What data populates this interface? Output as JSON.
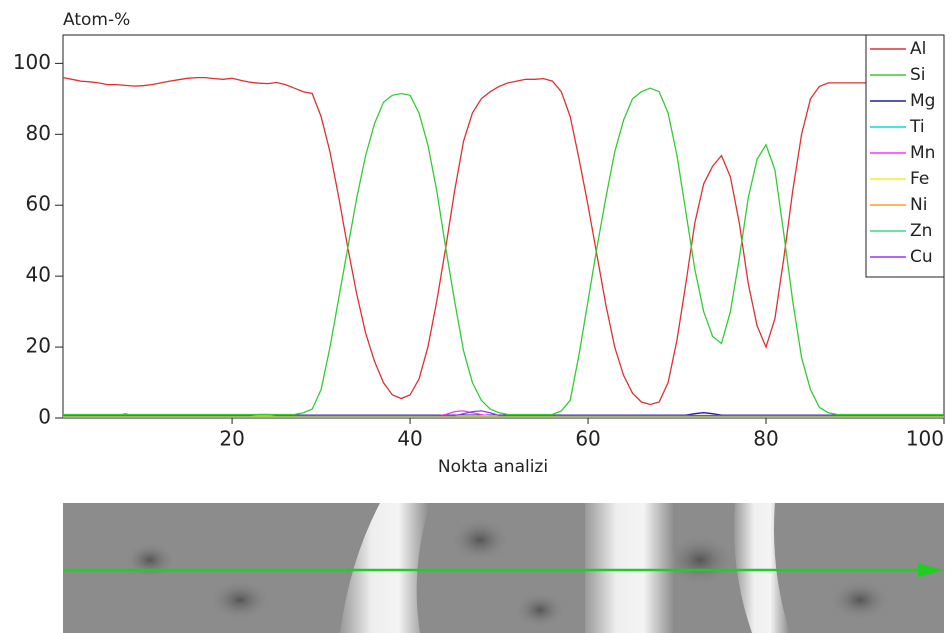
{
  "chart_data": {
    "type": "line",
    "y_label": "Atom-%",
    "x_label": "Nokta analizi",
    "x": [
      1,
      2,
      3,
      4,
      5,
      6,
      7,
      8,
      9,
      10,
      11,
      12,
      13,
      14,
      15,
      16,
      17,
      18,
      19,
      20,
      21,
      22,
      23,
      24,
      25,
      26,
      27,
      28,
      29,
      30,
      31,
      32,
      33,
      34,
      35,
      36,
      37,
      38,
      39,
      40,
      41,
      42,
      43,
      44,
      45,
      46,
      47,
      48,
      49,
      50,
      51,
      52,
      53,
      54,
      55,
      56,
      57,
      58,
      59,
      60,
      61,
      62,
      63,
      64,
      65,
      66,
      67,
      68,
      69,
      70,
      71,
      72,
      73,
      74,
      75,
      76,
      77,
      78,
      79,
      80,
      81,
      82,
      83,
      84,
      85,
      86,
      87,
      88,
      89,
      90,
      91,
      92,
      93,
      94,
      95,
      96,
      97,
      98,
      99,
      100
    ],
    "xlim": [
      1,
      100
    ],
    "xticks": [
      20,
      40,
      60,
      80,
      100
    ],
    "ylim": [
      0,
      108
    ],
    "yticks": [
      0,
      20,
      40,
      60,
      80,
      100
    ],
    "legend": "top-right",
    "series": [
      {
        "name": "Al",
        "color": "#e03030",
        "values": [
          96,
          95.5,
          95,
          94.8,
          94.5,
          94,
          94,
          93.8,
          93.6,
          93.7,
          94,
          94.5,
          95,
          95.4,
          95.8,
          96,
          96,
          95.7,
          95.5,
          95.8,
          95.2,
          94.7,
          94.4,
          94.3,
          94.6,
          94,
          93,
          92,
          91.5,
          85,
          75,
          62,
          48,
          35,
          24,
          16,
          10,
          6.5,
          5.5,
          6.5,
          11,
          20,
          33,
          48,
          64,
          78,
          86,
          90,
          92,
          93.5,
          94.5,
          95,
          95.5,
          95.5,
          95.7,
          95,
          92,
          85,
          73,
          60,
          46,
          32,
          20,
          12,
          7,
          4.5,
          3.8,
          4.5,
          10,
          22,
          38,
          55,
          66,
          71,
          74,
          68,
          55,
          38,
          26,
          20,
          28,
          45,
          64,
          80,
          90,
          93.5,
          94.5,
          94.5,
          94.5,
          94.5,
          94.5,
          94.5,
          94.5,
          94.5,
          94.5,
          94.5,
          94.5,
          94.5,
          94.5,
          94.5
        ]
      },
      {
        "name": "Si",
        "color": "#33cc33",
        "values": [
          1,
          1,
          1,
          1,
          1,
          1,
          1,
          1,
          1,
          1,
          1,
          1,
          1,
          1,
          1,
          1,
          1,
          1,
          1,
          1,
          1,
          1,
          1,
          1,
          1,
          1,
          1,
          1.5,
          2.5,
          8,
          20,
          34,
          48,
          62,
          74,
          83,
          89,
          91,
          91.5,
          91,
          86,
          77,
          64,
          48,
          33,
          19,
          10,
          5,
          2.5,
          1.5,
          1,
          1,
          1,
          1,
          1,
          1,
          2,
          5,
          18,
          33,
          48,
          62,
          75,
          84,
          90,
          92,
          93,
          92,
          86,
          74,
          58,
          42,
          30,
          23,
          21,
          30,
          45,
          62,
          73,
          77,
          70,
          52,
          33,
          17,
          8,
          3,
          1.5,
          1,
          1,
          1,
          1,
          1,
          1,
          1,
          1,
          1,
          1,
          1,
          1,
          1
        ]
      },
      {
        "name": "Mg",
        "color": "#2020a0",
        "values": [
          0.8,
          0.8,
          0.8,
          0.8,
          0.8,
          0.8,
          0.8,
          0.8,
          0.8,
          0.8,
          0.8,
          0.8,
          0.8,
          0.8,
          0.8,
          0.8,
          0.8,
          0.8,
          0.8,
          0.8,
          0.8,
          0.8,
          0.8,
          0.8,
          0.8,
          0.8,
          0.8,
          0.8,
          0.8,
          0.8,
          0.8,
          0.8,
          0.8,
          0.8,
          0.8,
          0.8,
          0.8,
          0.8,
          0.8,
          0.8,
          0.8,
          0.8,
          0.8,
          0.8,
          0.8,
          0.8,
          0.8,
          0.8,
          0.8,
          0.8,
          0.8,
          0.8,
          0.8,
          0.8,
          0.8,
          0.8,
          0.8,
          0.8,
          0.8,
          0.8,
          0.8,
          0.8,
          0.8,
          0.8,
          0.8,
          0.8,
          0.8,
          0.8,
          0.8,
          0.8,
          0.8,
          1.2,
          1.5,
          1.2,
          0.8,
          0.8,
          0.8,
          0.8,
          0.8,
          0.8,
          0.8,
          0.8,
          0.8,
          0.8,
          0.8,
          0.8,
          0.8,
          0.8,
          0.8,
          0.8,
          0.8,
          0.8,
          0.8,
          0.8,
          0.8,
          0.8,
          0.8,
          0.8,
          0.8,
          0.8
        ]
      },
      {
        "name": "Ti",
        "color": "#00dddd",
        "values": [
          0.4,
          0.4,
          0.4,
          0.4,
          0.4,
          0.4,
          0.4,
          0.4,
          0.4,
          0.4,
          0.4,
          0.4,
          0.4,
          0.4,
          0.4,
          0.4,
          0.4,
          0.4,
          0.4,
          0.4,
          0.4,
          0.4,
          0.4,
          0.4,
          0.4,
          0.4,
          0.4,
          0.4,
          0.4,
          0.4,
          0.4,
          0.4,
          0.4,
          0.4,
          0.4,
          0.4,
          0.4,
          0.4,
          0.4,
          0.4,
          0.4,
          0.4,
          0.4,
          0.4,
          0.4,
          0.4,
          0.4,
          0.4,
          0.4,
          0.4,
          0.4,
          0.4,
          0.4,
          0.4,
          0.4,
          0.4,
          0.4,
          0.4,
          0.4,
          0.4,
          0.4,
          0.4,
          0.4,
          0.4,
          0.4,
          0.4,
          0.4,
          0.4,
          0.4,
          0.4,
          0.4,
          0.4,
          0.4,
          0.4,
          0.4,
          0.4,
          0.4,
          0.4,
          0.4,
          0.4,
          0.4,
          0.4,
          0.4,
          0.4,
          0.4,
          0.4,
          0.4,
          0.4,
          0.4,
          0.4,
          0.4,
          0.4,
          0.4,
          0.4,
          0.4,
          0.4,
          0.4,
          0.4,
          0.4,
          0.4
        ]
      },
      {
        "name": "Mn",
        "color": "#ff33ff",
        "values": [
          0.5,
          0.5,
          0.5,
          0.5,
          0.5,
          0.5,
          0.5,
          1.2,
          0.5,
          0.5,
          0.5,
          0.5,
          0.5,
          0.5,
          0.5,
          0.5,
          0.5,
          0.5,
          0.5,
          0.5,
          0.5,
          0.5,
          0.5,
          0.5,
          0.5,
          0.5,
          0.5,
          0.5,
          0.5,
          0.5,
          0.5,
          0.5,
          0.5,
          0.5,
          0.5,
          0.5,
          0.5,
          0.5,
          0.5,
          0.5,
          0.5,
          0.5,
          0.5,
          1,
          1.8,
          2,
          1.5,
          1,
          0.5,
          0.5,
          0.5,
          0.5,
          0.5,
          0.5,
          0.5,
          0.5,
          0.5,
          0.5,
          0.5,
          0.5,
          0.5,
          0.5,
          0.5,
          0.5,
          0.5,
          0.5,
          0.5,
          0.5,
          0.5,
          0.5,
          0.5,
          0.5,
          0.5,
          0.5,
          0.5,
          0.5,
          0.5,
          0.5,
          0.5,
          0.5,
          0.5,
          0.5,
          0.5,
          0.5,
          0.5,
          0.5,
          0.5,
          0.5,
          0.5,
          0.5,
          0.5,
          0.5,
          0.5,
          0.5,
          0.5,
          0.5,
          0.5,
          0.5,
          0.5,
          0.5
        ]
      },
      {
        "name": "Fe",
        "color": "#eeee22",
        "values": [
          0.6,
          0.6,
          0.6,
          0.6,
          0.6,
          0.6,
          0.6,
          0.6,
          0.6,
          0.6,
          0.6,
          0.6,
          0.6,
          0.6,
          0.6,
          0.6,
          0.6,
          0.6,
          0.6,
          0.6,
          0.6,
          0.6,
          0.6,
          0.6,
          0.6,
          0.6,
          0.6,
          0.6,
          0.6,
          0.6,
          0.6,
          0.6,
          0.6,
          0.6,
          0.6,
          0.6,
          0.6,
          0.6,
          0.6,
          0.6,
          0.6,
          0.6,
          0.6,
          0.6,
          0.6,
          0.6,
          0.6,
          0.6,
          0.6,
          0.6,
          0.6,
          0.6,
          0.6,
          0.6,
          0.6,
          0.6,
          0.6,
          0.6,
          0.6,
          0.6,
          0.6,
          0.6,
          0.6,
          0.6,
          0.6,
          0.6,
          0.6,
          0.6,
          0.6,
          0.6,
          0.6,
          0.6,
          0.6,
          0.6,
          0.6,
          0.6,
          0.6,
          0.6,
          0.6,
          0.6,
          0.6,
          0.6,
          0.6,
          0.6,
          0.6,
          0.6,
          0.6,
          0.6,
          0.6,
          0.6,
          0.6,
          0.6,
          0.6,
          0.6,
          0.6,
          0.6,
          0.6,
          0.6,
          0.6,
          0.6
        ]
      },
      {
        "name": "Ni",
        "color": "#ff9933",
        "values": [
          0.3,
          0.3,
          0.3,
          0.3,
          0.3,
          0.3,
          0.3,
          0.3,
          0.3,
          0.3,
          0.3,
          0.3,
          0.3,
          0.3,
          0.3,
          0.3,
          0.3,
          0.3,
          0.3,
          0.3,
          0.3,
          0.3,
          0.3,
          0.3,
          0.3,
          0.3,
          0.3,
          0.3,
          0.3,
          0.3,
          0.3,
          0.3,
          0.3,
          0.3,
          0.3,
          0.3,
          0.3,
          0.3,
          0.3,
          0.3,
          0.3,
          0.3,
          0.3,
          0.3,
          0.3,
          0.3,
          0.3,
          0.3,
          0.3,
          0.3,
          0.3,
          0.3,
          0.3,
          0.3,
          0.3,
          0.3,
          0.3,
          0.3,
          0.3,
          0.3,
          0.3,
          0.3,
          0.3,
          0.3,
          0.3,
          0.3,
          0.3,
          0.3,
          0.3,
          0.3,
          0.3,
          0.3,
          0.3,
          0.3,
          0.3,
          0.3,
          0.3,
          0.3,
          0.3,
          0.3,
          0.3,
          0.3,
          0.3,
          0.3,
          0.3,
          0.3,
          0.3,
          0.3,
          0.3,
          0.3,
          0.3,
          0.3,
          0.3,
          0.3,
          0.3,
          0.3,
          0.3,
          0.3,
          0.3,
          0.3
        ]
      },
      {
        "name": "Zn",
        "color": "#33dd88",
        "values": [
          0.2,
          0.2,
          0.2,
          0.2,
          0.2,
          0.2,
          0.2,
          0.2,
          0.2,
          0.2,
          0.2,
          0.2,
          0.2,
          0.2,
          0.2,
          0.2,
          0.2,
          0.2,
          0.2,
          0.2,
          0.2,
          0.2,
          0.2,
          0.2,
          0.2,
          0.2,
          0.2,
          0.2,
          0.2,
          0.2,
          0.2,
          0.2,
          0.2,
          0.2,
          0.2,
          0.2,
          0.2,
          0.2,
          0.2,
          0.2,
          0.2,
          0.2,
          0.2,
          0.2,
          0.2,
          0.2,
          0.2,
          0.2,
          0.2,
          0.2,
          0.2,
          0.2,
          0.2,
          0.2,
          0.2,
          0.2,
          0.2,
          0.2,
          0.2,
          0.2,
          0.2,
          0.2,
          0.2,
          0.2,
          0.2,
          0.2,
          0.2,
          0.2,
          0.2,
          0.2,
          0.2,
          0.2,
          0.2,
          0.2,
          0.2,
          0.2,
          0.2,
          0.2,
          0.2,
          0.2,
          0.2,
          0.2,
          0.2,
          0.2,
          0.2,
          0.2,
          0.2,
          0.2,
          0.2,
          0.2,
          0.2,
          0.2,
          0.2,
          0.2,
          0.2,
          0.2,
          0.2,
          0.2,
          0.2,
          0.2
        ]
      },
      {
        "name": "Cu",
        "color": "#9933ff",
        "values": [
          0.7,
          0.7,
          0.7,
          0.7,
          0.7,
          0.7,
          0.7,
          0.7,
          0.7,
          0.7,
          0.7,
          0.7,
          0.7,
          0.7,
          0.7,
          0.7,
          0.7,
          0.7,
          0.7,
          0.7,
          0.7,
          0.7,
          1,
          1,
          0.7,
          0.7,
          0.7,
          0.7,
          0.7,
          0.7,
          0.7,
          0.7,
          0.7,
          0.7,
          0.7,
          0.7,
          0.7,
          0.7,
          0.7,
          0.7,
          0.7,
          0.7,
          0.7,
          0.7,
          0.7,
          1.2,
          1.8,
          2,
          1.5,
          0.7,
          0.7,
          0.7,
          0.7,
          0.7,
          0.7,
          0.7,
          0.7,
          0.7,
          0.7,
          0.7,
          0.7,
          0.7,
          0.7,
          0.7,
          0.7,
          0.7,
          0.7,
          0.7,
          0.7,
          0.7,
          0.7,
          0.7,
          0.7,
          0.7,
          0.7,
          0.7,
          0.7,
          0.7,
          0.7,
          0.7,
          0.7,
          0.7,
          0.7,
          0.7,
          0.7,
          0.7,
          0.7,
          0.7,
          0.7,
          0.7,
          0.7,
          0.7,
          0.7,
          0.7,
          0.7,
          0.7,
          0.7,
          0.7,
          0.7,
          0.7
        ]
      }
    ]
  }
}
